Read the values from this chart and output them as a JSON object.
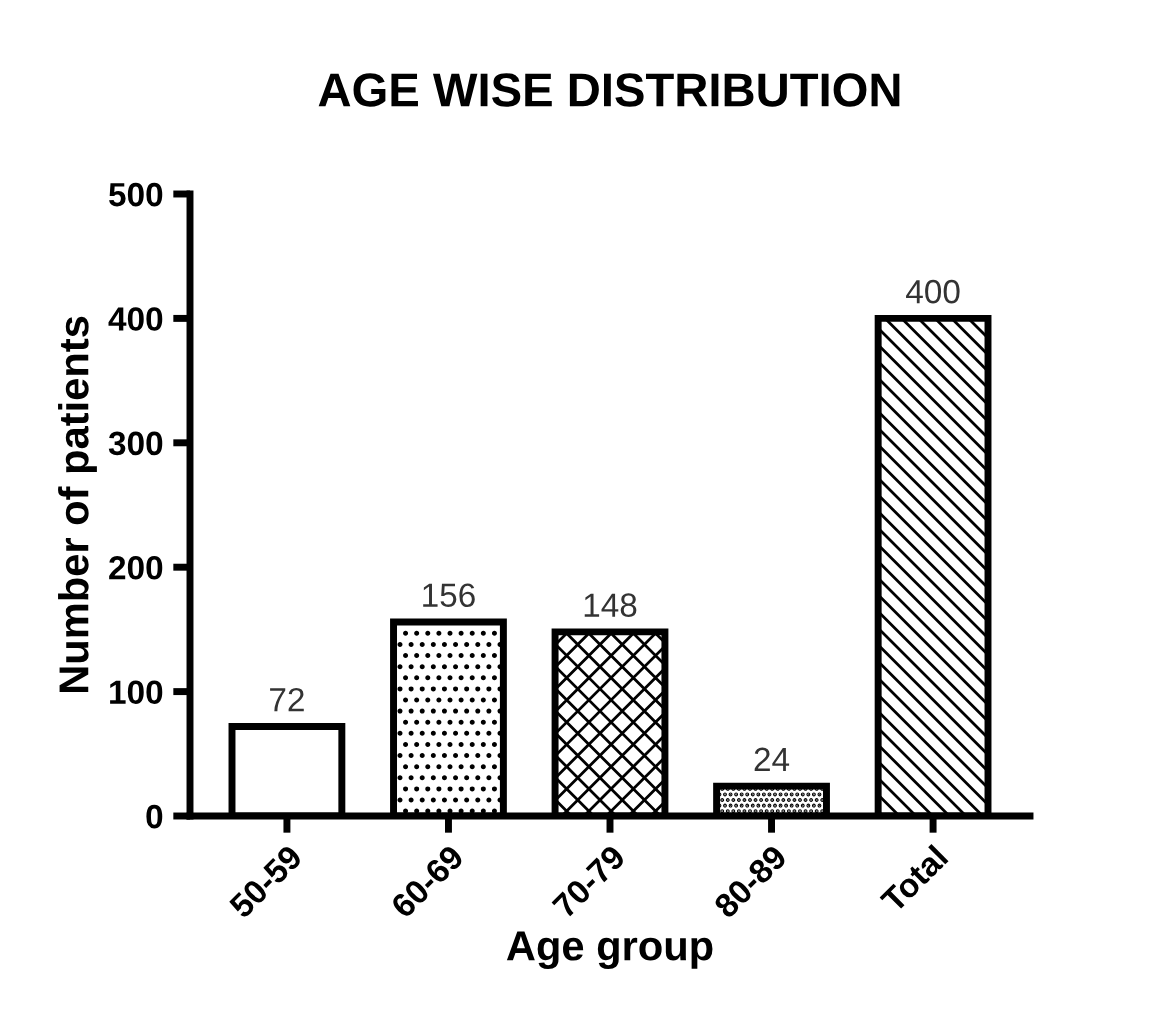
{
  "chart_data": {
    "type": "bar",
    "title": "AGE WISE DISTRIBUTION",
    "xlabel": "Age group",
    "ylabel": "Number of patients",
    "categories": [
      "50-59",
      "60-69",
      "70-79",
      "80-89",
      "Total"
    ],
    "values": [
      72,
      156,
      148,
      24,
      400
    ],
    "colors": [
      "#000000",
      "#000000",
      "#000000",
      "#000000",
      "#000000"
    ],
    "ylim": [
      0,
      500
    ],
    "yticks": [
      0,
      100,
      200,
      300,
      400,
      500
    ],
    "grid": false,
    "data_labels": true
  }
}
